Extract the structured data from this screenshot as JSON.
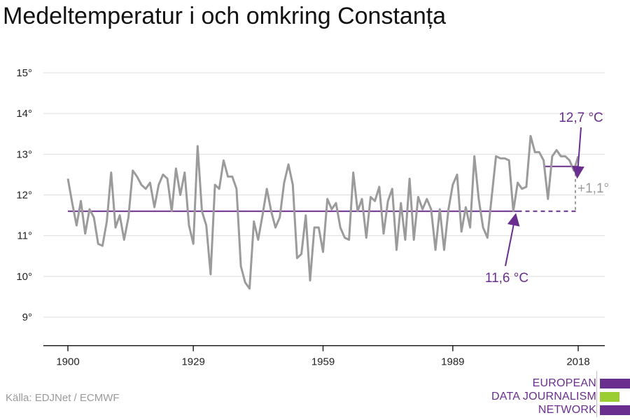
{
  "title": "Medeltemperatur i och omkring Constanța",
  "source": "Källa: EDJNet / ECMWF",
  "logo": {
    "line1": "EUROPEAN",
    "line2": "DATA JOURNALISM",
    "line3": "NETWORK",
    "colors": [
      "#6a2e8e",
      "#9acd32",
      "#6a2e8e"
    ]
  },
  "colors": {
    "series": "#9b9b9b",
    "accent": "#6a2e8e",
    "delta": "#9b9b9b",
    "grid": "#dddddd"
  },
  "chart_data": {
    "type": "line",
    "title": "Medeltemperatur i och omkring Constanța",
    "xlim": [
      1900,
      2018
    ],
    "ylim": [
      8.3,
      15
    ],
    "yticks": [
      9,
      10,
      11,
      12,
      13,
      14,
      15
    ],
    "ytick_labels": [
      "9°",
      "10°",
      "11°",
      "12°",
      "13°",
      "14°",
      "15°"
    ],
    "xticks": [
      1900,
      1929,
      1959,
      1989,
      2018
    ],
    "xtick_labels": [
      "1900",
      "1929",
      "1959",
      "1989",
      "2018"
    ],
    "x_start": 1900,
    "series": [
      {
        "values": [
          12.4,
          11.8,
          11.25,
          11.85,
          11.05,
          11.65,
          11.45,
          10.8,
          10.75,
          11.35,
          12.55,
          11.2,
          11.5,
          10.9,
          11.45,
          12.6,
          12.45,
          12.25,
          12.15,
          12.3,
          11.7,
          12.25,
          12.5,
          12.4,
          11.6,
          12.65,
          12.0,
          12.55,
          11.25,
          10.8,
          13.2,
          11.6,
          11.25,
          10.05,
          12.25,
          12.15,
          12.85,
          12.45,
          12.45,
          12.15,
          10.25,
          9.85,
          9.7,
          11.35,
          10.9,
          11.5,
          12.15,
          11.6,
          11.2,
          11.45,
          12.3,
          12.75,
          12.25,
          10.45,
          10.55,
          11.5,
          9.9,
          11.2,
          11.2,
          10.6,
          11.9,
          11.65,
          11.8,
          11.2,
          10.95,
          10.9,
          12.55,
          11.6,
          11.9,
          10.95,
          11.95,
          11.85,
          12.2,
          11.05,
          11.85,
          12.15,
          10.65,
          11.8,
          10.9,
          12.4,
          10.9,
          11.95,
          11.65,
          11.9,
          11.65,
          10.65,
          11.65,
          10.65,
          11.65,
          12.25,
          12.5,
          11.1,
          11.7,
          11.2,
          12.95,
          11.9,
          11.2,
          10.95,
          11.95,
          12.95,
          12.9,
          12.9,
          12.85,
          11.6,
          12.3,
          12.15,
          12.2,
          13.45,
          13.05,
          13.05,
          12.85,
          11.9,
          12.95,
          13.1,
          12.95,
          12.95,
          12.85,
          12.6,
          12.95
        ]
      }
    ],
    "reference": {
      "value": 11.6,
      "label": "11,6 °C",
      "solid_to": 2004
    },
    "recent": {
      "value": 12.7,
      "from": 2010,
      "to": 2018,
      "label": "12,7 °C"
    },
    "delta_label": "+1,1°"
  }
}
